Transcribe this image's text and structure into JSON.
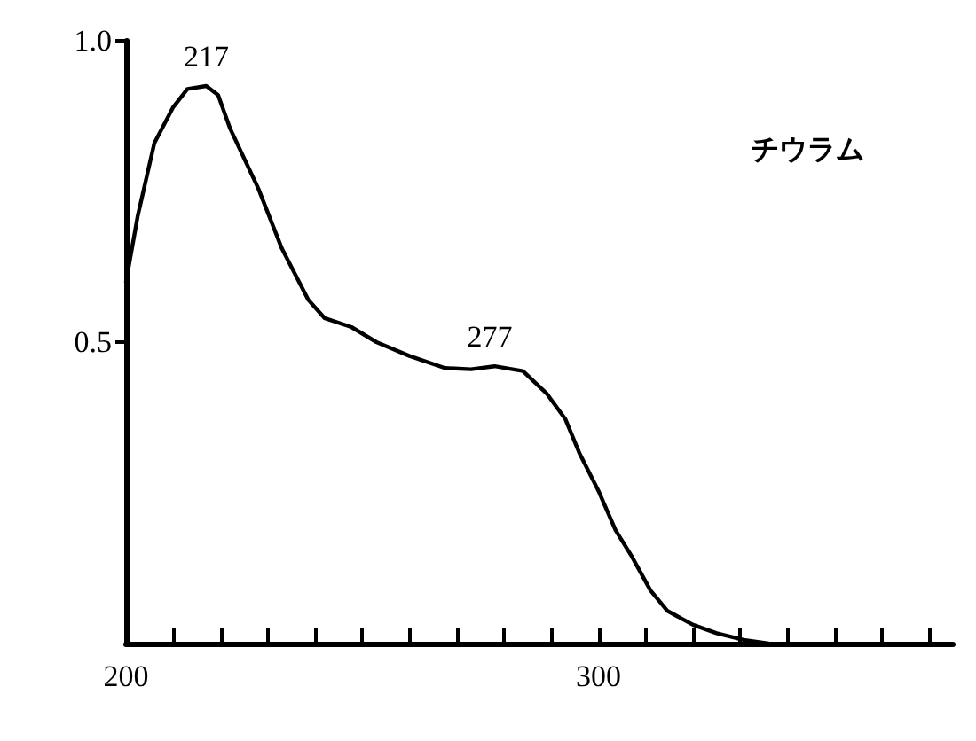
{
  "chart_data": {
    "type": "line",
    "x": [
      200,
      202.5,
      206,
      210,
      213,
      217,
      219.5,
      222,
      228,
      233,
      238.6,
      242,
      247.7,
      253,
      260,
      267.5,
      273,
      278,
      284,
      289,
      293,
      296,
      300,
      303.6,
      307,
      311,
      314.6,
      320,
      325,
      330.7,
      336
    ],
    "series": [
      {
        "color": "#000000",
        "values": [
          0.6,
          0.71,
          0.83,
          0.89,
          0.92,
          0.925,
          0.91,
          0.855,
          0.755,
          0.655,
          0.57,
          0.54,
          0.525,
          0.5,
          0.477,
          0.457,
          0.455,
          0.46,
          0.452,
          0.415,
          0.372,
          0.315,
          0.253,
          0.188,
          0.145,
          0.088,
          0.054,
          0.031,
          0.017,
          0.006,
          0
        ]
      }
    ],
    "xlim": [
      200,
      375
    ],
    "xticks": [
      200,
      {
        "value": 210,
        "label": null
      },
      {
        "value": 220,
        "label": null
      },
      {
        "value": 230,
        "label": null
      },
      {
        "value": 240,
        "label": null
      },
      {
        "value": 250,
        "label": null
      },
      {
        "value": 260,
        "label": null
      },
      {
        "value": 270,
        "label": null
      },
      {
        "value": 280,
        "label": null
      },
      {
        "value": 290,
        "label": null
      },
      300,
      {
        "value": 310,
        "label": null
      },
      {
        "value": 320,
        "label": null
      },
      {
        "value": 330,
        "label": null
      },
      {
        "value": 340,
        "label": null
      },
      {
        "value": 350,
        "label": null
      },
      {
        "value": 360,
        "label": null
      },
      {
        "value": 370,
        "label": null
      }
    ],
    "ylim": [
      0,
      1
    ],
    "yticks": [
      {
        "value": 0.5,
        "label": "0.5"
      },
      {
        "value": 1,
        "label": "1.0"
      }
    ],
    "annotations": [
      {
        "text": "217",
        "x": 217,
        "y": 0.925
      },
      {
        "text": "277",
        "x": 277,
        "y": 0.46
      },
      "チウラム"
    ],
    "grid": false,
    "marker": "none",
    "line_style": "solid"
  }
}
